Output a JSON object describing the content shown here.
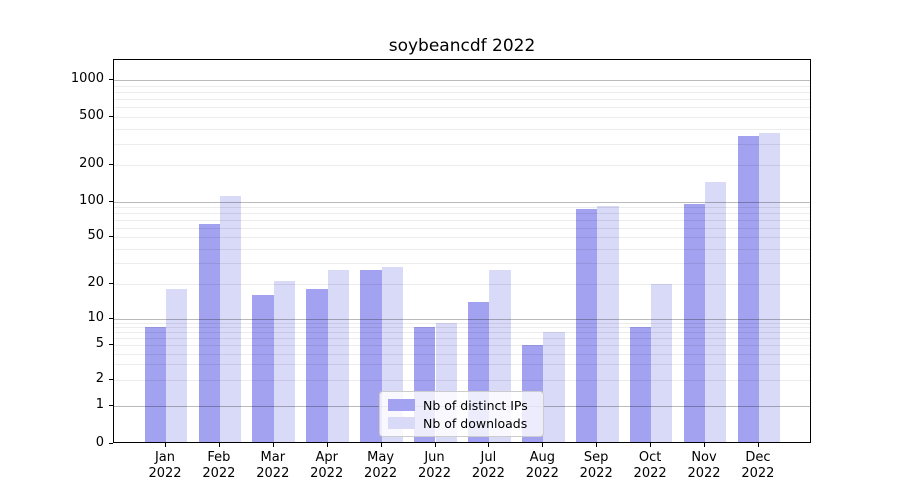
{
  "chart_data": {
    "type": "bar",
    "title": "soybeancdf 2022",
    "categories": [
      "Jan 2022",
      "Feb 2022",
      "Mar 2022",
      "Apr 2022",
      "May 2022",
      "Jun 2022",
      "Jul 2022",
      "Aug 2022",
      "Sep 2022",
      "Oct 2022",
      "Nov 2022",
      "Dec 2022"
    ],
    "series": [
      {
        "name": "Nb of distinct IPs",
        "color": "#a2a2f0",
        "values": [
          8,
          65,
          16,
          18,
          26,
          8,
          14,
          5,
          87,
          8,
          96,
          350
        ]
      },
      {
        "name": "Nb of downloads",
        "color": "#d9d9f8",
        "values": [
          18,
          113,
          21,
          26,
          28,
          9,
          26,
          7,
          92,
          20,
          145,
          370
        ]
      }
    ],
    "xlabel": "",
    "ylabel": "",
    "yscale": "symlog",
    "y_ticks": [
      0,
      1,
      2,
      5,
      10,
      20,
      50,
      100,
      200,
      500,
      1000
    ],
    "ylim": [
      0,
      1500
    ],
    "grid": true,
    "legend_position": "lower center"
  }
}
